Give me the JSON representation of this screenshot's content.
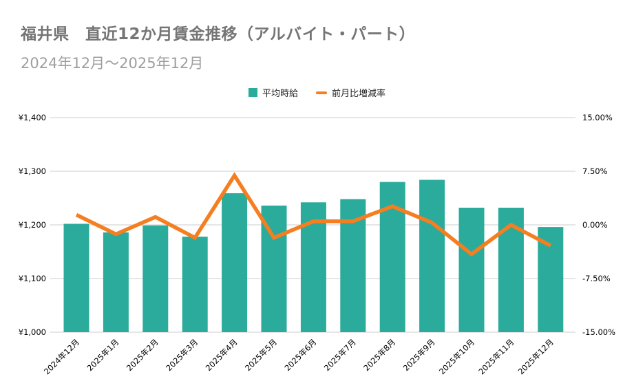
{
  "header": {
    "title": "福井県　直近12か月賃金推移（アルバイト・パート）",
    "subtitle": "2024年12月～2025年12月"
  },
  "legend": {
    "items": [
      {
        "label": "平均時給",
        "type": "bar"
      },
      {
        "label": "前月比増減率",
        "type": "line"
      }
    ]
  },
  "chart_data": {
    "type": "bar",
    "subtype": "combo-bar-line-dual-axis",
    "title": "福井県　直近12か月賃金推移（アルバイト・パート）",
    "subtitle": "2024年12月～2025年12月",
    "categories": [
      "2024年12月",
      "2025年1月",
      "2025年2月",
      "2025年3月",
      "2025年4月",
      "2025年5月",
      "2025年6月",
      "2025年7月",
      "2025年8月",
      "2025年9月",
      "2025年10月",
      "2025年11月",
      "2025年12月"
    ],
    "series": [
      {
        "name": "平均時給",
        "type": "bar",
        "axis": "left",
        "unit": "¥",
        "values": [
          1202,
          1186,
          1199,
          1178,
          1259,
          1236,
          1242,
          1248,
          1280,
          1284,
          1232,
          1232,
          1196
        ]
      },
      {
        "name": "前月比増減率",
        "type": "line",
        "axis": "right",
        "unit": "%",
        "values": [
          1.4,
          -1.3,
          1.1,
          -1.8,
          6.9,
          -1.8,
          0.5,
          0.5,
          2.6,
          0.3,
          -4.1,
          0.0,
          -2.9
        ]
      }
    ],
    "y_left": {
      "min": 1000,
      "max": 1400,
      "ticks": [
        1000,
        1100,
        1200,
        1300,
        1400
      ],
      "tick_labels": [
        "¥1,000",
        "¥1,100",
        "¥1,200",
        "¥1,300",
        "¥1,400"
      ]
    },
    "y_right": {
      "min": -15,
      "max": 15,
      "ticks": [
        -15,
        -7.5,
        0,
        7.5,
        15
      ],
      "tick_labels": [
        "-15.00%",
        "-7.50%",
        "0.00%",
        "7.50%",
        "15.00%"
      ]
    },
    "grid": true,
    "legend_position": "top"
  },
  "colors": {
    "bar": "#2bab9b",
    "line": "#f57e20",
    "grid": "#cccccc",
    "title": "#757575",
    "subtitle": "#9e9e9e",
    "axis_text": "#000000",
    "background": "#ffffff"
  }
}
